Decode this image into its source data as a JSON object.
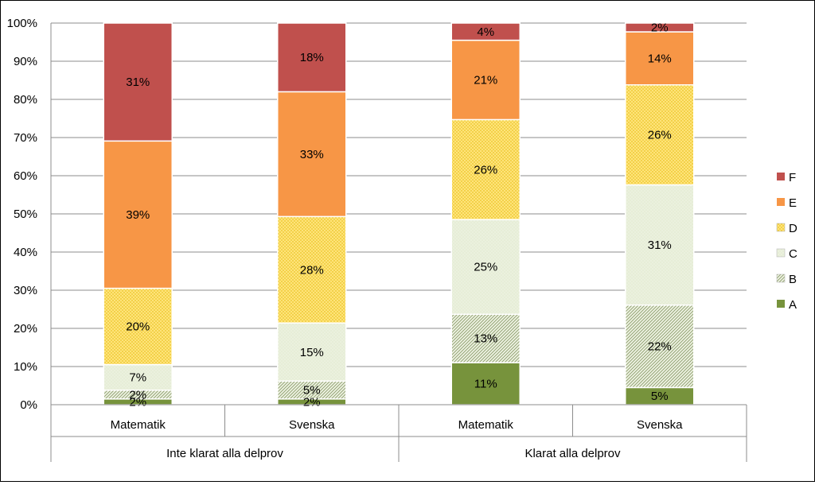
{
  "chart_data": {
    "type": "bar",
    "stacked": true,
    "normalized": true,
    "ylim": [
      0,
      100
    ],
    "y_ticks": [
      "0%",
      "10%",
      "20%",
      "30%",
      "40%",
      "50%",
      "60%",
      "70%",
      "80%",
      "90%",
      "100%"
    ],
    "grid": true,
    "legend_position": "right",
    "categories": [
      "Matematik",
      "Svenska",
      "Matematik",
      "Svenska"
    ],
    "groups": [
      {
        "label": "Inte klarat alla delprov",
        "categories": [
          0,
          1
        ]
      },
      {
        "label": "Klarat alla delprov",
        "categories": [
          2,
          3
        ]
      }
    ],
    "series": [
      {
        "name": "A",
        "values": [
          1.5,
          1.5,
          11,
          4.5
        ],
        "labels": [
          "2%",
          "2%",
          "11%",
          "5%"
        ],
        "color": "#77933c",
        "pattern": "solid"
      },
      {
        "name": "B",
        "values": [
          2.3,
          4.7,
          12.7,
          21.6
        ],
        "labels": [
          "2%",
          "5%",
          "13%",
          "22%"
        ],
        "color": "#c4d79b",
        "pattern": "diagonal"
      },
      {
        "name": "C",
        "values": [
          6.7,
          15.2,
          24.8,
          31.5
        ],
        "labels": [
          "7%",
          "15%",
          "25%",
          "31%"
        ],
        "color": "#ebf1de",
        "pattern": "dots-light"
      },
      {
        "name": "D",
        "values": [
          20,
          27.9,
          26.2,
          26.2
        ],
        "labels": [
          "20%",
          "28%",
          "26%",
          "26%"
        ],
        "color": "#ffd966",
        "pattern": "dots"
      },
      {
        "name": "E",
        "values": [
          38.6,
          32.7,
          20.8,
          13.9
        ],
        "labels": [
          "39%",
          "33%",
          "21%",
          "14%"
        ],
        "color": "#f79646",
        "pattern": "solid"
      },
      {
        "name": "F",
        "values": [
          30.9,
          18,
          4.5,
          2.3
        ],
        "labels": [
          "31%",
          "18%",
          "4%",
          "2%"
        ],
        "color": "#c0504d",
        "pattern": "solid"
      }
    ]
  }
}
